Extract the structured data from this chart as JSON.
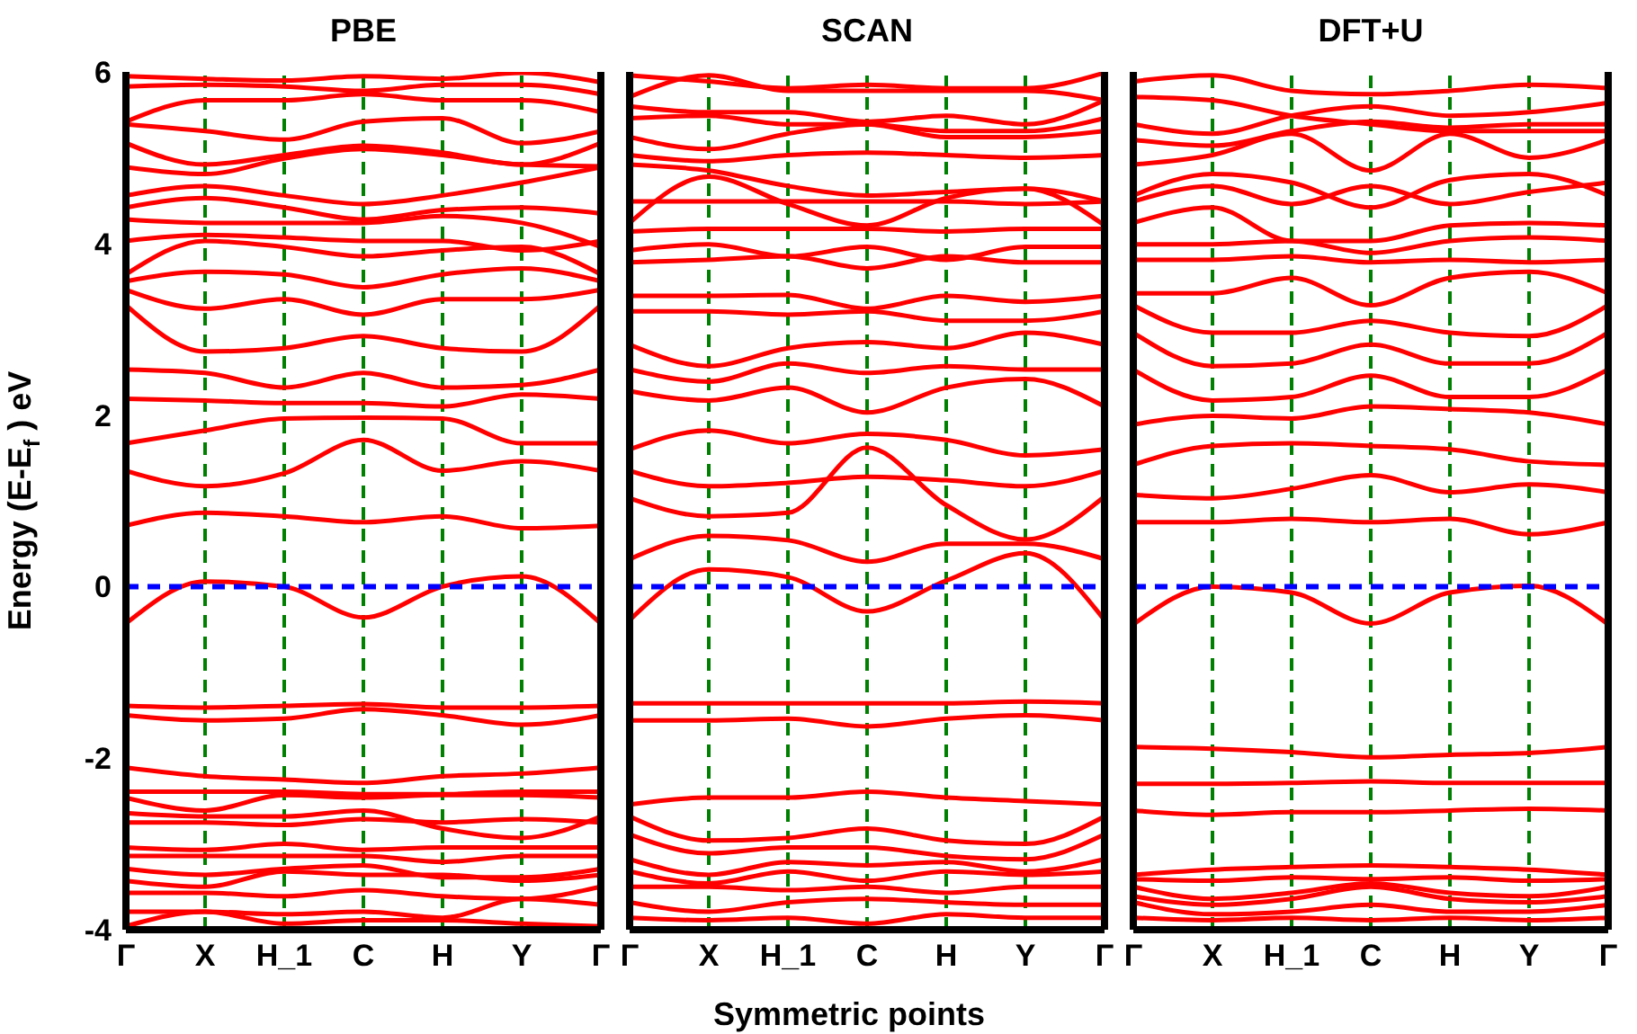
{
  "chart_data": [
    {
      "type": "line",
      "title": "PBE",
      "ylabel": "Energy (E-E$_{f}$ ) eV",
      "categories": [
        "Γ",
        "X",
        "H_1",
        "C",
        "H",
        "Y",
        "Γ"
      ],
      "ylim": [
        -4,
        6
      ],
      "yticks": [
        -4,
        -2,
        0,
        2,
        4,
        6
      ],
      "ref_lines": [
        {
          "axis": "x",
          "value": "X",
          "color": "#008000",
          "line_style": "dashed"
        },
        {
          "axis": "x",
          "value": "H_1",
          "color": "#008000",
          "line_style": "dashed"
        },
        {
          "axis": "x",
          "value": "C",
          "color": "#008000",
          "line_style": "dashed"
        },
        {
          "axis": "x",
          "value": "H",
          "color": "#008000",
          "line_style": "dashed"
        },
        {
          "axis": "x",
          "value": "Y",
          "color": "#008000",
          "line_style": "dashed"
        },
        {
          "axis": "y",
          "value": 0,
          "color": "#0000ff",
          "line_style": "dashed"
        }
      ],
      "series": [
        {
          "color": "#ff0000",
          "values": [
            5.95,
            5.92,
            5.9,
            5.95,
            5.92,
            5.99,
            5.88
          ]
        },
        {
          "color": "#ff0000",
          "values": [
            5.83,
            5.85,
            5.83,
            5.78,
            5.85,
            5.85,
            5.74
          ]
        },
        {
          "color": "#ff0000",
          "values": [
            5.42,
            5.67,
            5.67,
            5.74,
            5.67,
            5.67,
            5.53
          ]
        },
        {
          "color": "#ff0000",
          "values": [
            5.39,
            5.31,
            5.21,
            5.42,
            5.46,
            5.17,
            5.31
          ]
        },
        {
          "color": "#ff0000",
          "values": [
            5.17,
            4.92,
            5.03,
            5.14,
            5.06,
            4.92,
            5.17
          ]
        },
        {
          "color": "#ff0000",
          "values": [
            4.89,
            4.81,
            4.99,
            5.1,
            5.03,
            4.92,
            4.9
          ]
        },
        {
          "color": "#ff0000",
          "values": [
            4.56,
            4.67,
            4.56,
            4.46,
            4.56,
            4.71,
            4.89
          ]
        },
        {
          "color": "#ff0000",
          "values": [
            4.42,
            4.53,
            4.42,
            4.28,
            4.39,
            4.42,
            4.35
          ]
        },
        {
          "color": "#ff0000",
          "values": [
            4.28,
            4.24,
            4.24,
            4.24,
            4.32,
            4.24,
            3.96
          ]
        },
        {
          "color": "#ff0000",
          "values": [
            4.03,
            4.1,
            4.07,
            4.03,
            4.03,
            3.92,
            4.03
          ]
        },
        {
          "color": "#ff0000",
          "values": [
            3.64,
            4.03,
            3.96,
            3.85,
            3.92,
            3.96,
            3.64
          ]
        },
        {
          "color": "#ff0000",
          "values": [
            3.56,
            3.67,
            3.64,
            3.49,
            3.64,
            3.71,
            3.56
          ]
        },
        {
          "color": "#ff0000",
          "values": [
            3.46,
            3.24,
            3.35,
            3.17,
            3.35,
            3.35,
            3.46
          ]
        },
        {
          "color": "#ff0000",
          "values": [
            3.28,
            2.74,
            2.78,
            2.92,
            2.78,
            2.74,
            3.28
          ]
        },
        {
          "color": "#ff0000",
          "values": [
            2.53,
            2.49,
            2.32,
            2.49,
            2.32,
            2.35,
            2.53
          ]
        },
        {
          "color": "#ff0000",
          "values": [
            2.19,
            2.17,
            2.14,
            2.14,
            2.1,
            2.24,
            2.19
          ]
        },
        {
          "color": "#ff0000",
          "values": [
            1.67,
            1.82,
            1.96,
            1.97,
            1.96,
            1.67,
            1.67
          ]
        },
        {
          "color": "#ff0000",
          "values": [
            1.35,
            1.17,
            1.32,
            1.71,
            1.35,
            1.46,
            1.35
          ]
        },
        {
          "color": "#ff0000",
          "values": [
            0.71,
            0.86,
            0.82,
            0.75,
            0.82,
            0.68,
            0.71
          ]
        },
        {
          "color": "#ff0000",
          "values": [
            -0.43,
            0.06,
            0,
            -0.36,
            0,
            0.12,
            -0.43
          ]
        },
        {
          "color": "#ff0000",
          "values": [
            -1.39,
            -1.41,
            -1.39,
            -1.37,
            -1.41,
            -1.41,
            -1.39
          ]
        },
        {
          "color": "#ff0000",
          "values": [
            -1.5,
            -1.56,
            -1.54,
            -1.43,
            -1.5,
            -1.61,
            -1.5
          ]
        },
        {
          "color": "#ff0000",
          "values": [
            -2.11,
            -2.21,
            -2.25,
            -2.29,
            -2.21,
            -2.18,
            -2.11
          ]
        },
        {
          "color": "#ff0000",
          "values": [
            -2.39,
            -2.39,
            -2.39,
            -2.42,
            -2.42,
            -2.39,
            -2.39
          ]
        },
        {
          "color": "#ff0000",
          "values": [
            -2.46,
            -2.61,
            -2.43,
            -2.46,
            -2.43,
            -2.43,
            -2.46
          ]
        },
        {
          "color": "#ff0000",
          "values": [
            -2.64,
            -2.68,
            -2.68,
            -2.61,
            -2.82,
            -2.93,
            -2.68
          ]
        },
        {
          "color": "#ff0000",
          "values": [
            -2.75,
            -2.75,
            -2.78,
            -2.71,
            -2.75,
            -2.71,
            -2.75
          ]
        },
        {
          "color": "#ff0000",
          "values": [
            -3.04,
            -3.07,
            -3,
            -3.07,
            -3.04,
            -3.04,
            -3.04
          ]
        },
        {
          "color": "#ff0000",
          "values": [
            -3.14,
            -3.14,
            -3.14,
            -3.14,
            -3.21,
            -3.14,
            -3.14
          ]
        },
        {
          "color": "#ff0000",
          "values": [
            -3.29,
            -3.36,
            -3.29,
            -3.25,
            -3.39,
            -3.39,
            -3.29
          ]
        },
        {
          "color": "#ff0000",
          "values": [
            -3.43,
            -3.5,
            -3.32,
            -3.36,
            -3.36,
            -3.43,
            -3.36
          ]
        },
        {
          "color": "#ff0000",
          "values": [
            -3.57,
            -3.57,
            -3.61,
            -3.54,
            -3.61,
            -3.64,
            -3.5
          ]
        },
        {
          "color": "#ff0000",
          "values": [
            -3.79,
            -3.79,
            -3.82,
            -3.79,
            -3.86,
            -3.64,
            -3.71
          ]
        },
        {
          "color": "#ff0000",
          "values": [
            -3.96,
            -3.79,
            -3.93,
            -3.89,
            -3.89,
            -3.93,
            -3.96
          ]
        }
      ]
    },
    {
      "type": "line",
      "title": "SCAN",
      "xlabel": "Symmetric points",
      "tick_labels": "x",
      "categories": [
        "Γ",
        "X",
        "H_1",
        "C",
        "H",
        "Y",
        "Γ"
      ],
      "ylim": [
        -4,
        6
      ],
      "yticks": [
        -4,
        -2,
        0,
        2,
        4,
        6
      ],
      "ref_lines": [
        {
          "axis": "x",
          "value": "X",
          "color": "#008000",
          "line_style": "dashed"
        },
        {
          "axis": "x",
          "value": "H_1",
          "color": "#008000",
          "line_style": "dashed"
        },
        {
          "axis": "x",
          "value": "C",
          "color": "#008000",
          "line_style": "dashed"
        },
        {
          "axis": "x",
          "value": "H",
          "color": "#008000",
          "line_style": "dashed"
        },
        {
          "axis": "x",
          "value": "Y",
          "color": "#008000",
          "line_style": "dashed"
        },
        {
          "axis": "y",
          "value": 0,
          "color": "#0000ff",
          "line_style": "dashed"
        }
      ],
      "series": [
        {
          "color": "#ff0000",
          "values": [
            5.96,
            5.89,
            5.81,
            5.85,
            5.81,
            5.81,
            5.99
          ]
        },
        {
          "color": "#ff0000",
          "values": [
            5.71,
            5.96,
            5.78,
            5.78,
            5.78,
            5.78,
            5.67
          ]
        },
        {
          "color": "#ff0000",
          "values": [
            5.6,
            5.53,
            5.53,
            5.42,
            5.49,
            5.39,
            5.67
          ]
        },
        {
          "color": "#ff0000",
          "values": [
            5.46,
            5.49,
            5.39,
            5.39,
            5.31,
            5.31,
            5.46
          ]
        },
        {
          "color": "#ff0000",
          "values": [
            5.24,
            5.1,
            5.28,
            5.39,
            5.24,
            5.24,
            5.31
          ]
        },
        {
          "color": "#ff0000",
          "values": [
            5.03,
            4.96,
            5.03,
            5.06,
            5.03,
            5,
            5.03
          ]
        },
        {
          "color": "#ff0000",
          "values": [
            4.92,
            4.85,
            4.67,
            4.56,
            4.6,
            4.64,
            4.49
          ]
        },
        {
          "color": "#ff0000",
          "values": [
            4.49,
            4.49,
            4.49,
            4.49,
            4.49,
            4.46,
            4.49
          ]
        },
        {
          "color": "#ff0000",
          "values": [
            4.24,
            4.78,
            4.46,
            4.21,
            4.53,
            4.64,
            4.21
          ]
        },
        {
          "color": "#ff0000",
          "values": [
            4.14,
            4.17,
            4.17,
            4.17,
            4.14,
            4.17,
            4.17
          ]
        },
        {
          "color": "#ff0000",
          "values": [
            3.92,
            3.99,
            3.85,
            3.96,
            3.81,
            3.96,
            3.96
          ]
        },
        {
          "color": "#ff0000",
          "values": [
            3.78,
            3.81,
            3.85,
            3.71,
            3.85,
            3.78,
            3.78
          ]
        },
        {
          "color": "#ff0000",
          "values": [
            3.39,
            3.39,
            3.4,
            3.24,
            3.39,
            3.32,
            3.39
          ]
        },
        {
          "color": "#ff0000",
          "values": [
            3.21,
            3.21,
            3.17,
            3.21,
            3.1,
            3.1,
            3.21
          ]
        },
        {
          "color": "#ff0000",
          "values": [
            2.82,
            2.57,
            2.78,
            2.85,
            2.78,
            2.96,
            2.82
          ]
        },
        {
          "color": "#ff0000",
          "values": [
            2.53,
            2.39,
            2.6,
            2.49,
            2.57,
            2.53,
            2.53
          ]
        },
        {
          "color": "#ff0000",
          "values": [
            2.28,
            2.17,
            2.32,
            2.03,
            2.32,
            2.42,
            2.1
          ]
        },
        {
          "color": "#ff0000",
          "values": [
            1.6,
            1.82,
            1.67,
            1.78,
            1.71,
            1.53,
            1.6
          ]
        },
        {
          "color": "#ff0000",
          "values": [
            1.35,
            1.17,
            1.21,
            1.28,
            1.24,
            1.17,
            1.35
          ]
        },
        {
          "color": "#ff0000",
          "values": [
            1.03,
            0.82,
            0.86,
            1.62,
            0.95,
            0.55,
            1.05
          ]
        },
        {
          "color": "#ff0000",
          "values": [
            0.32,
            0.59,
            0.54,
            0.29,
            0.5,
            0.5,
            0.32
          ]
        },
        {
          "color": "#ff0000",
          "values": [
            -0.39,
            0.2,
            0.11,
            -0.29,
            0.07,
            0.39,
            -0.39
          ]
        },
        {
          "color": "#ff0000",
          "values": [
            -1.36,
            -1.36,
            -1.36,
            -1.36,
            -1.36,
            -1.34,
            -1.36
          ]
        },
        {
          "color": "#ff0000",
          "values": [
            -1.56,
            -1.56,
            -1.54,
            -1.63,
            -1.54,
            -1.5,
            -1.56
          ]
        },
        {
          "color": "#ff0000",
          "values": [
            -2.54,
            -2.46,
            -2.46,
            -2.39,
            -2.46,
            -2.5,
            -2.54
          ]
        },
        {
          "color": "#ff0000",
          "values": [
            -2.68,
            -2.96,
            -2.93,
            -2.82,
            -2.96,
            -3,
            -2.68
          ]
        },
        {
          "color": "#ff0000",
          "values": [
            -2.89,
            -3.11,
            -3.04,
            -3.04,
            -3.14,
            -3.18,
            -2.89
          ]
        },
        {
          "color": "#ff0000",
          "values": [
            -3.18,
            -3.36,
            -3.21,
            -3.25,
            -3.21,
            -3.32,
            -3.18
          ]
        },
        {
          "color": "#ff0000",
          "values": [
            -3.32,
            -3.46,
            -3.32,
            -3.43,
            -3.32,
            -3.36,
            -3.32
          ]
        },
        {
          "color": "#ff0000",
          "values": [
            -3.5,
            -3.5,
            -3.54,
            -3.5,
            -3.57,
            -3.5,
            -3.5
          ]
        },
        {
          "color": "#ff0000",
          "values": [
            -3.68,
            -3.79,
            -3.68,
            -3.64,
            -3.68,
            -3.71,
            -3.71
          ]
        },
        {
          "color": "#ff0000",
          "values": [
            -3.86,
            -3.89,
            -3.86,
            -3.93,
            -3.82,
            -3.86,
            -3.86
          ]
        }
      ]
    },
    {
      "type": "line",
      "title": "DFT+U",
      "tick_labels": "x",
      "categories": [
        "Γ",
        "X",
        "H_1",
        "C",
        "H",
        "Y",
        "Γ"
      ],
      "ylim": [
        -4,
        6
      ],
      "yticks": [
        -4,
        -2,
        0,
        2,
        4,
        6
      ],
      "ref_lines": [
        {
          "axis": "x",
          "value": "X",
          "color": "#008000",
          "line_style": "dashed"
        },
        {
          "axis": "x",
          "value": "H_1",
          "color": "#008000",
          "line_style": "dashed"
        },
        {
          "axis": "x",
          "value": "C",
          "color": "#008000",
          "line_style": "dashed"
        },
        {
          "axis": "x",
          "value": "H",
          "color": "#008000",
          "line_style": "dashed"
        },
        {
          "axis": "x",
          "value": "Y",
          "color": "#008000",
          "line_style": "dashed"
        },
        {
          "axis": "y",
          "value": 0,
          "color": "#0000ff",
          "line_style": "dashed"
        }
      ],
      "series": [
        {
          "color": "#ff0000",
          "values": [
            5.89,
            5.96,
            5.78,
            5.74,
            5.78,
            5.85,
            5.81
          ]
        },
        {
          "color": "#ff0000",
          "values": [
            5.71,
            5.67,
            5.49,
            5.39,
            5.31,
            5.31,
            5.31
          ]
        },
        {
          "color": "#ff0000",
          "values": [
            5.39,
            5.28,
            5.49,
            5.6,
            5.49,
            5.53,
            5.64
          ]
        },
        {
          "color": "#ff0000",
          "values": [
            5.21,
            5.14,
            5.31,
            5.42,
            5.35,
            5.39,
            5.39
          ]
        },
        {
          "color": "#ff0000",
          "values": [
            4.92,
            5.03,
            5.28,
            4.85,
            5.28,
            5,
            5.21
          ]
        },
        {
          "color": "#ff0000",
          "values": [
            4.56,
            4.81,
            4.71,
            4.42,
            4.74,
            4.81,
            4.56
          ]
        },
        {
          "color": "#ff0000",
          "values": [
            4.49,
            4.67,
            4.46,
            4.67,
            4.46,
            4.6,
            4.71
          ]
        },
        {
          "color": "#ff0000",
          "values": [
            4.24,
            4.42,
            4.03,
            4.03,
            4.21,
            4.24,
            4.21
          ]
        },
        {
          "color": "#ff0000",
          "values": [
            3.99,
            3.99,
            4.03,
            3.89,
            4.03,
            4.07,
            4.03
          ]
        },
        {
          "color": "#ff0000",
          "values": [
            3.81,
            3.81,
            3.85,
            3.78,
            3.81,
            3.78,
            3.81
          ]
        },
        {
          "color": "#ff0000",
          "values": [
            3.42,
            3.42,
            3.6,
            3.28,
            3.6,
            3.67,
            3.42
          ]
        },
        {
          "color": "#ff0000",
          "values": [
            3.28,
            2.96,
            2.96,
            3.1,
            2.96,
            2.92,
            3.28
          ]
        },
        {
          "color": "#ff0000",
          "values": [
            2.96,
            2.57,
            2.6,
            2.82,
            2.6,
            2.6,
            2.96
          ]
        },
        {
          "color": "#ff0000",
          "values": [
            2.53,
            2.17,
            2.21,
            2.46,
            2.21,
            2.21,
            2.53
          ]
        },
        {
          "color": "#ff0000",
          "values": [
            1.89,
            1.99,
            1.96,
            2.1,
            2.07,
            2.03,
            1.89
          ]
        },
        {
          "color": "#ff0000",
          "values": [
            1.42,
            1.64,
            1.67,
            1.64,
            1.6,
            1.46,
            1.42
          ]
        },
        {
          "color": "#ff0000",
          "values": [
            1.07,
            1.03,
            1.14,
            1.3,
            1.1,
            1.19,
            1.1
          ]
        },
        {
          "color": "#ff0000",
          "values": [
            0.75,
            0.75,
            0.79,
            0.75,
            0.79,
            0.61,
            0.75
          ]
        },
        {
          "color": "#ff0000",
          "values": [
            -0.44,
            0,
            -0.07,
            -0.43,
            -0.07,
            0.01,
            -0.44
          ]
        },
        {
          "color": "#ff0000",
          "values": [
            -1.87,
            -1.89,
            -1.93,
            -1.99,
            -1.96,
            -1.94,
            -1.87
          ]
        },
        {
          "color": "#ff0000",
          "values": [
            -2.3,
            -2.3,
            -2.29,
            -2.27,
            -2.29,
            -2.29,
            -2.29
          ]
        },
        {
          "color": "#ff0000",
          "values": [
            -2.61,
            -2.66,
            -2.63,
            -2.63,
            -2.61,
            -2.59,
            -2.61
          ]
        },
        {
          "color": "#ff0000",
          "values": [
            -3.36,
            -3.3,
            -3.27,
            -3.25,
            -3.27,
            -3.3,
            -3.36
          ]
        },
        {
          "color": "#ff0000",
          "values": [
            -3.41,
            -3.43,
            -3.39,
            -3.41,
            -3.39,
            -3.43,
            -3.41
          ]
        },
        {
          "color": "#ff0000",
          "values": [
            -3.5,
            -3.64,
            -3.57,
            -3.46,
            -3.57,
            -3.61,
            -3.5
          ]
        },
        {
          "color": "#ff0000",
          "values": [
            -3.61,
            -3.71,
            -3.64,
            -3.5,
            -3.64,
            -3.68,
            -3.61
          ]
        },
        {
          "color": "#ff0000",
          "values": [
            -3.68,
            -3.82,
            -3.79,
            -3.71,
            -3.79,
            -3.79,
            -3.71
          ]
        },
        {
          "color": "#ff0000",
          "values": [
            -3.86,
            -3.89,
            -3.86,
            -3.89,
            -3.86,
            -3.89,
            -3.86
          ]
        }
      ]
    }
  ]
}
